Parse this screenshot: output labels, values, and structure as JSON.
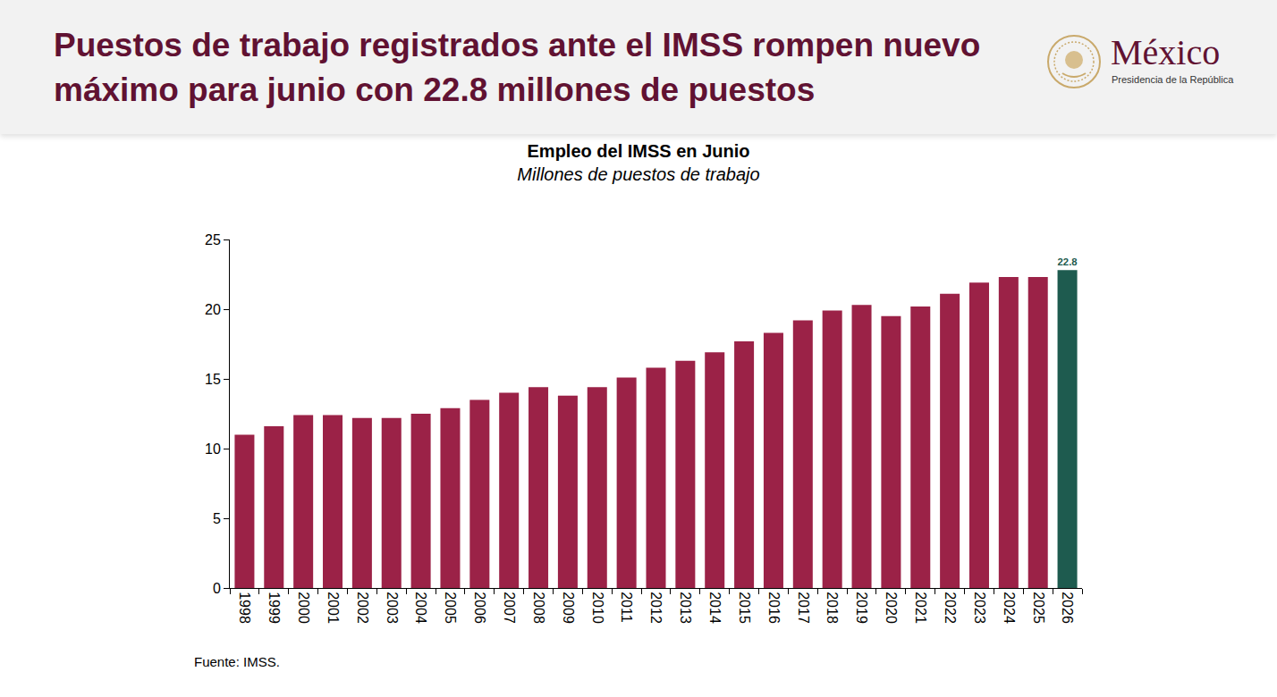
{
  "header": {
    "title": "Puestos de trabajo registrados ante el IMSS rompen nuevo máximo para junio con 22.8 millones de puestos",
    "logo_title": "México",
    "logo_subtitle": "Presidencia de la República"
  },
  "chart_data": {
    "type": "bar",
    "title": "Empleo del IMSS en Junio",
    "subtitle": "Millones de puestos de trabajo",
    "categories": [
      "1998",
      "1999",
      "2000",
      "2001",
      "2002",
      "2003",
      "2004",
      "2005",
      "2006",
      "2007",
      "2008",
      "2009",
      "2010",
      "2011",
      "2012",
      "2013",
      "2014",
      "2015",
      "2016",
      "2017",
      "2018",
      "2019",
      "2020",
      "2021",
      "2022",
      "2023",
      "2024",
      "2025",
      "2026"
    ],
    "values": [
      11.0,
      11.6,
      12.4,
      12.4,
      12.2,
      12.2,
      12.5,
      12.9,
      13.5,
      14.0,
      14.4,
      13.8,
      14.4,
      15.1,
      15.8,
      16.3,
      16.9,
      17.7,
      18.3,
      19.2,
      19.9,
      20.3,
      19.5,
      20.2,
      21.1,
      21.9,
      22.3,
      22.3,
      22.8
    ],
    "colors": [
      "#9b2247",
      "#9b2247",
      "#9b2247",
      "#9b2247",
      "#9b2247",
      "#9b2247",
      "#9b2247",
      "#9b2247",
      "#9b2247",
      "#9b2247",
      "#9b2247",
      "#9b2247",
      "#9b2247",
      "#9b2247",
      "#9b2247",
      "#9b2247",
      "#9b2247",
      "#9b2247",
      "#9b2247",
      "#9b2247",
      "#9b2247",
      "#9b2247",
      "#9b2247",
      "#9b2247",
      "#9b2247",
      "#9b2247",
      "#9b2247",
      "#9b2247",
      "#1e5b4f"
    ],
    "data_labels": true,
    "value_labels": [
      null,
      null,
      null,
      null,
      null,
      null,
      null,
      null,
      null,
      null,
      null,
      null,
      null,
      null,
      null,
      null,
      null,
      null,
      null,
      null,
      null,
      null,
      null,
      null,
      null,
      null,
      null,
      null,
      "22.8"
    ],
    "ylim": [
      0,
      25
    ],
    "yticks": [
      0,
      5,
      10,
      15,
      20,
      25
    ],
    "grid": false
  },
  "source": "Fuente: IMSS."
}
